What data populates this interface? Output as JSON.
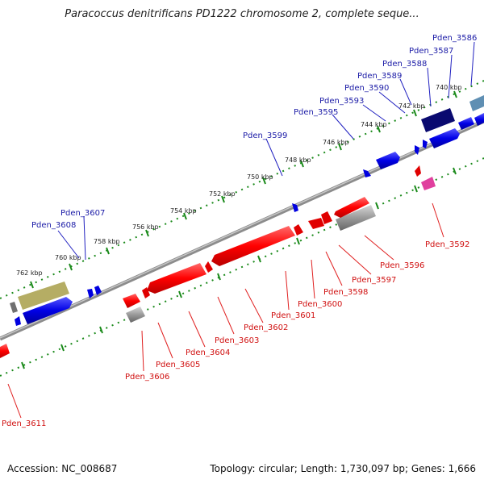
{
  "title": "Paracoccus denitrificans PD1222 chromosome 2, complete seque...",
  "footer": {
    "accession": "Accession: NC_008687",
    "topology": "Topology: circular; Length: 1,730,097 bp; Genes: 1,666"
  },
  "ticks": [
    "740 kbp",
    "742 kbp",
    "744 kbp",
    "746 kbp",
    "748 kbp",
    "750 kbp",
    "752 kbp",
    "754 kbp",
    "756 kbp",
    "758 kbp",
    "760 kbp",
    "762 kbp"
  ],
  "genes_forward": [
    "Pden_3586",
    "Pden_3587",
    "Pden_3588",
    "Pden_3589",
    "Pden_3590",
    "Pden_3593",
    "Pden_3595",
    "Pden_3599",
    "Pden_3607",
    "Pden_3608"
  ],
  "genes_reverse": [
    "Pden_3592",
    "Pden_3596",
    "Pden_3597",
    "Pden_3598",
    "Pden_3600",
    "Pden_3601",
    "Pden_3602",
    "Pden_3603",
    "Pden_3604",
    "Pden_3605",
    "Pden_3606",
    "Pden_3611"
  ],
  "colors": {
    "forward": "#0a10e0",
    "reverse": "#f00000",
    "forward_label": "#1a1aa6",
    "reverse_label": "#d01010",
    "backbone": "#909090",
    "tick": "#1a8a1a"
  }
}
